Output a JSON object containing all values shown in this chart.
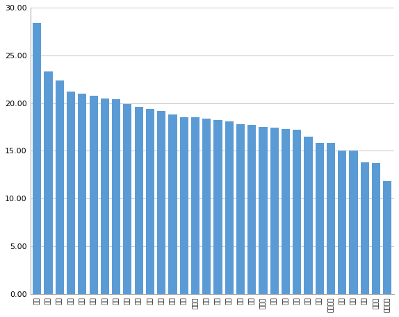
{
  "categories": [
    "北京",
    "上海",
    "深圳",
    "广州",
    "杭州",
    "苏州",
    "天津",
    "南京",
    "武汉",
    "成都",
    "西安",
    "长沙",
    "厦门",
    "重庆",
    "三门峡",
    "四平",
    "以下",
    "无锡",
    "拉萨",
    "宁波",
    "哈尔滨",
    "长春",
    "扬州",
    "中卫",
    "图们",
    "南宁",
    "乌鲁木齐",
    "贵阳",
    "沈阳",
    "江西",
    "内蒙古",
    "腾讯新疆"
  ],
  "values": [
    28.4,
    23.3,
    22.4,
    21.2,
    21.0,
    20.8,
    20.5,
    20.4,
    19.9,
    19.6,
    19.4,
    19.2,
    18.8,
    18.5,
    18.5,
    18.4,
    18.2,
    18.1,
    17.8,
    17.7,
    17.5,
    17.4,
    17.3,
    17.2,
    16.5,
    15.8,
    15.8,
    15.0,
    15.0,
    13.8,
    13.7,
    11.8
  ],
  "bar_color": "#5B9BD5",
  "ylim": [
    0,
    30
  ],
  "yticks": [
    0.0,
    5.0,
    10.0,
    15.0,
    20.0,
    25.0,
    30.0
  ],
  "grid_color": "#CCCCCC",
  "background_color": "#FFFFFF",
  "border_color": "#AAAAAA",
  "tick_label_fontsize": 6.5,
  "ytick_label_fontsize": 8
}
